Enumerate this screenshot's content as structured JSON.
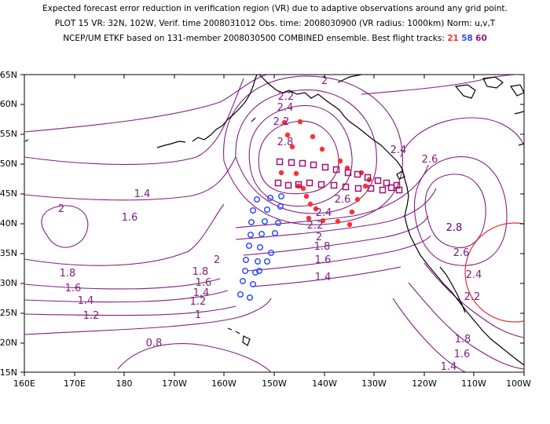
{
  "header": {
    "line1": "Expected forecast error reduction in verification region (VR) due to adaptive observations around any grid point.",
    "line2": "PLOT 15 VR: 32N, 102W, Verif. time 2008031012 Obs. time: 2008030900 (VR radius: 1000km) Norm: u,v,T",
    "line3_prefix": "NCEP/UM ETKF based on 131-member 2008030500 COMBINED ensemble.  Best flight tracks:",
    "track_21": "21",
    "track_58": "58",
    "track_60": "60"
  },
  "axes": {
    "lat_ticks": [
      "65N",
      "60N",
      "55N",
      "50N",
      "45N",
      "40N",
      "35N",
      "30N",
      "25N",
      "20N",
      "15N"
    ],
    "lon_ticks": [
      "160E",
      "170E",
      "180",
      "170W",
      "160W",
      "150W",
      "140W",
      "130W",
      "120W",
      "110W",
      "100W"
    ]
  },
  "contour_labels": [
    "2",
    "2.2",
    "2.4",
    "2.2",
    "2.8",
    "2.4",
    "2.6",
    "2.8",
    "1.4",
    "1.6",
    "2",
    "2.6",
    "2.4",
    "2.2",
    "2",
    "1.8",
    "1.6",
    "1.4",
    "2",
    "1.8",
    "1.6",
    "1.4",
    "1.2",
    "1.8",
    "1.6",
    "1.4",
    "1.2",
    "1",
    "0.8",
    "2.8",
    "2.6",
    "2.4",
    "2.2",
    "1.8",
    "1.6",
    "1.4"
  ],
  "colors": {
    "contour": "#802080",
    "coast": "#000000",
    "track_21": "#ff3030",
    "track_58": "#3050ff",
    "track_60": "#a01070",
    "verification_circle": "#e03030"
  },
  "tracks": {
    "track_21_label": "21",
    "track_58_label": "58",
    "track_60_label": "60"
  }
}
